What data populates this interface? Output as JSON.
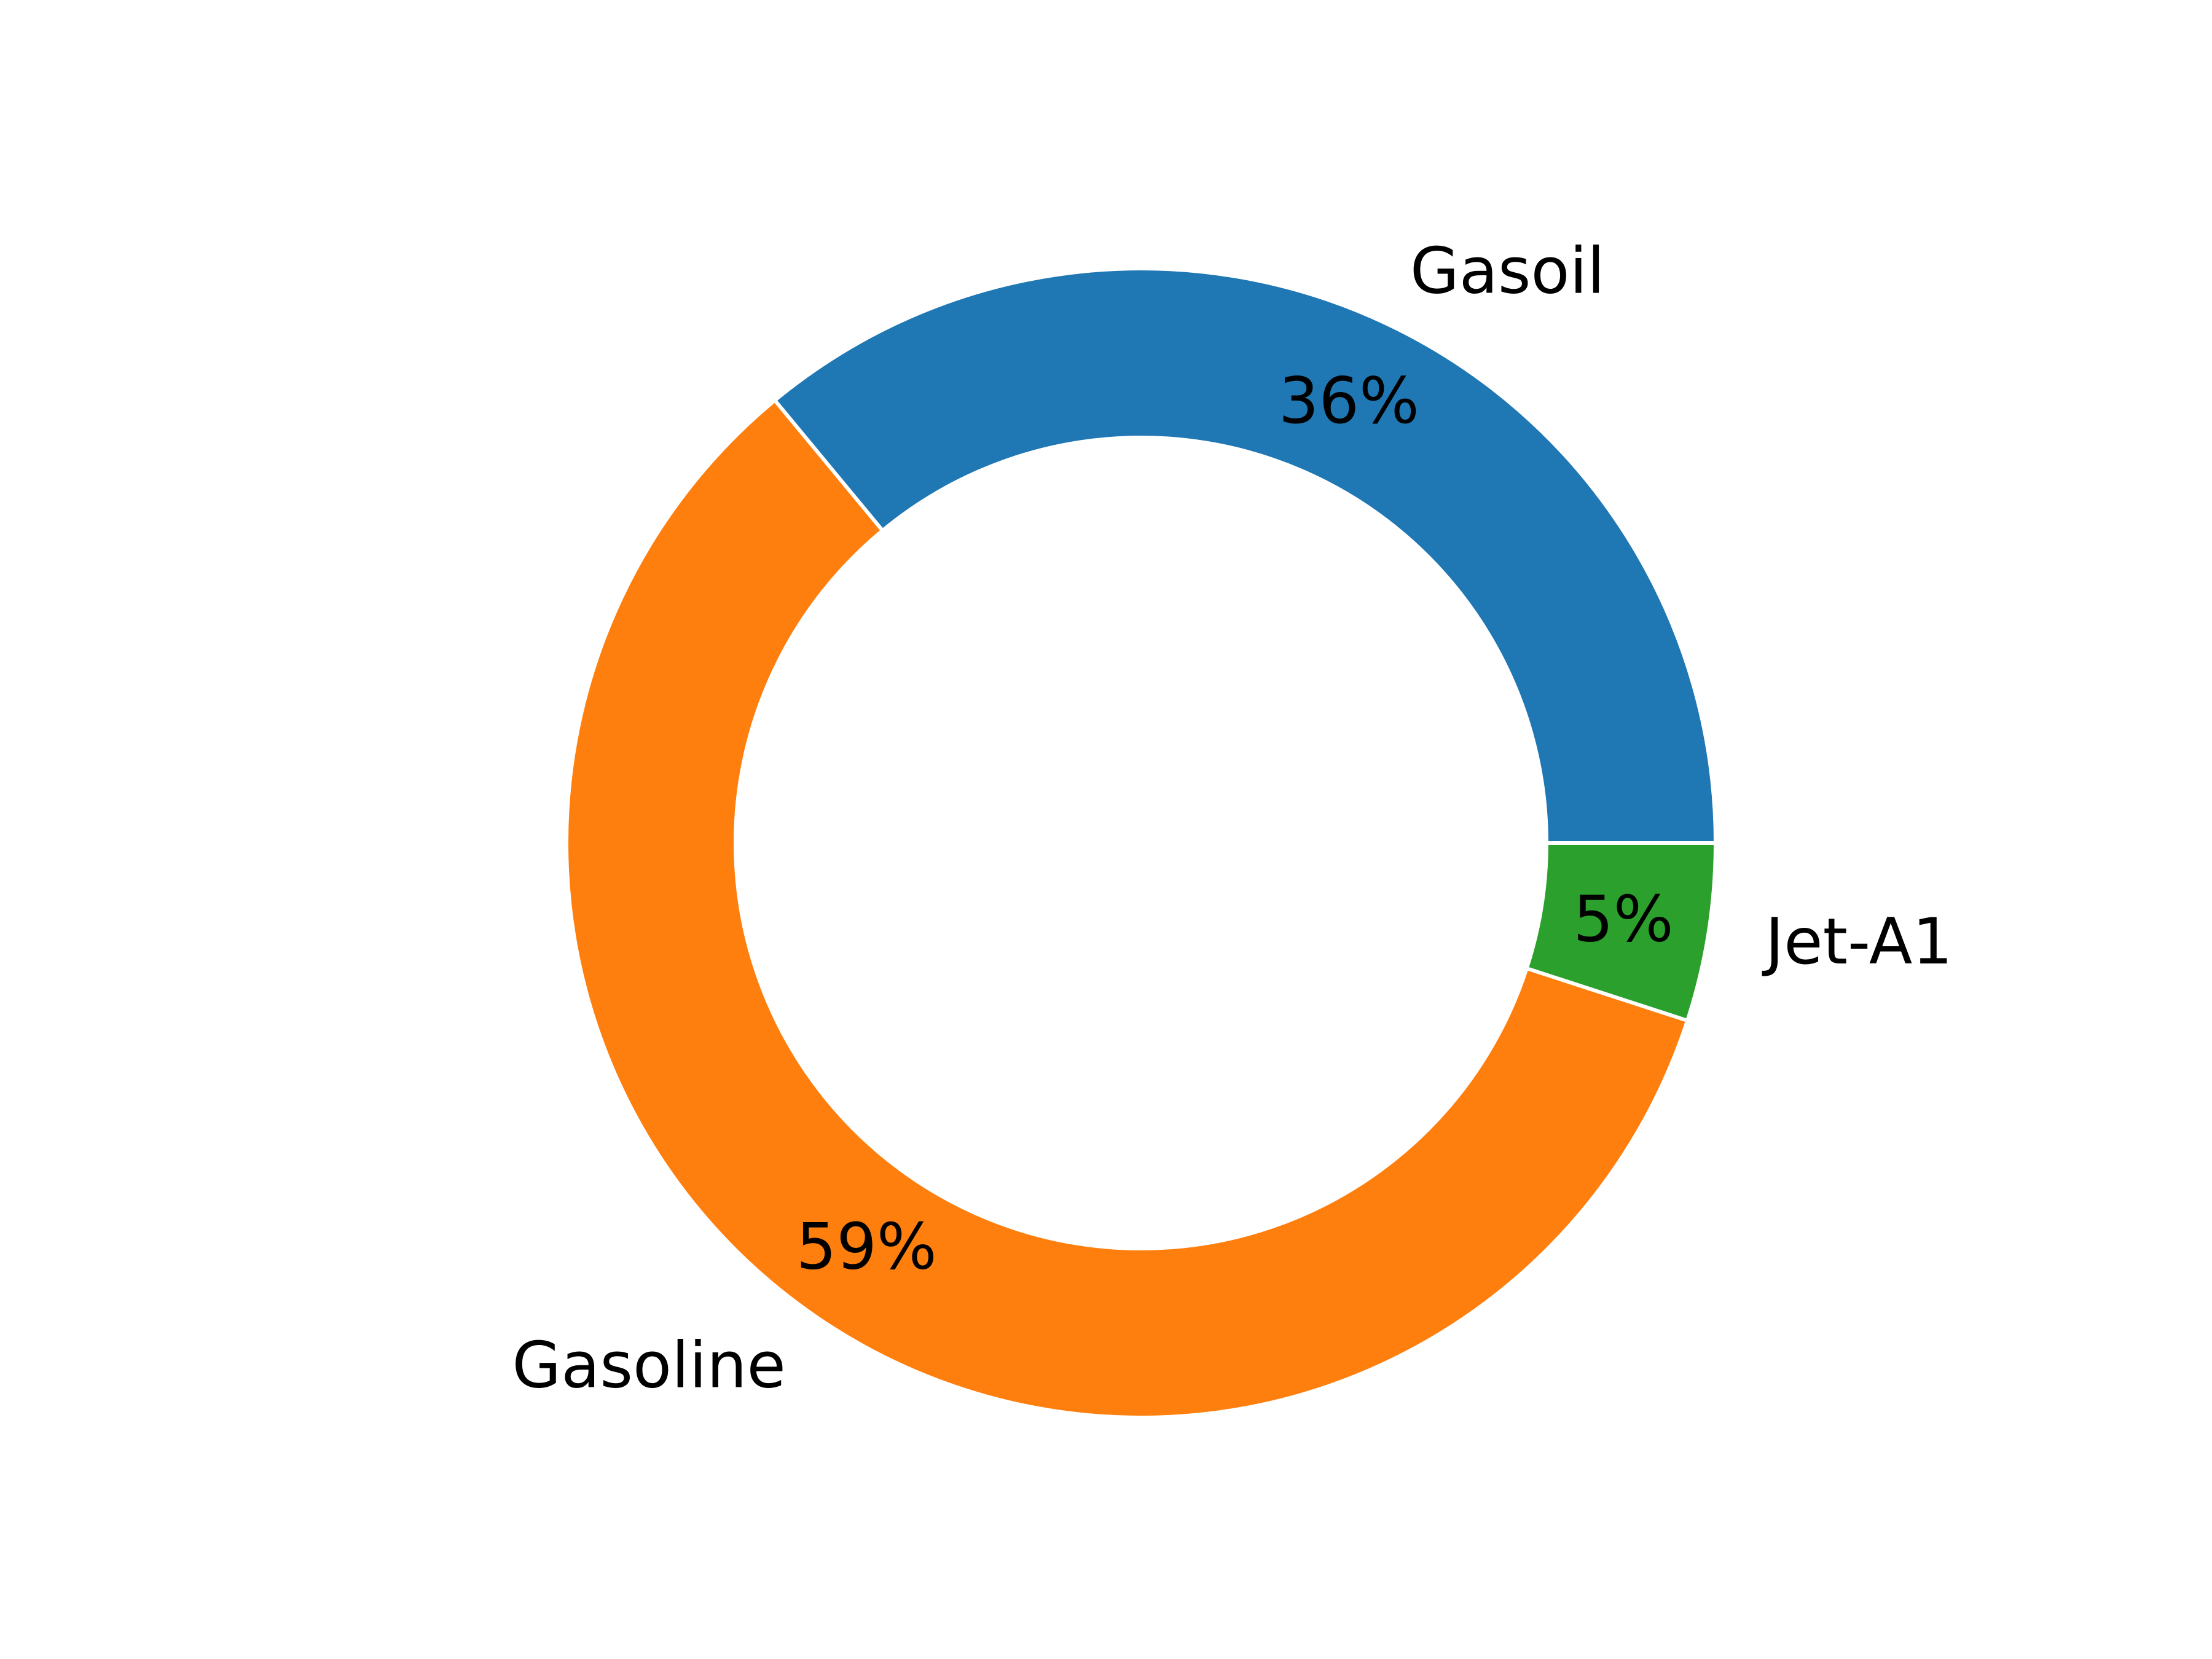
{
  "chart_data": {
    "type": "pie",
    "variant": "donut",
    "title": "",
    "categories": [
      "Gasoil",
      "Gasoline",
      "Jet-A1"
    ],
    "values": [
      36,
      59,
      5
    ],
    "percent_labels": [
      "36%",
      "59%",
      "5%"
    ],
    "colors": [
      "#1f77b4",
      "#ff7f0e",
      "#2ca02c"
    ],
    "edge_color": "#ffffff",
    "start_angle_deg": 0,
    "direction": "counterclockwise",
    "legend": "none"
  }
}
